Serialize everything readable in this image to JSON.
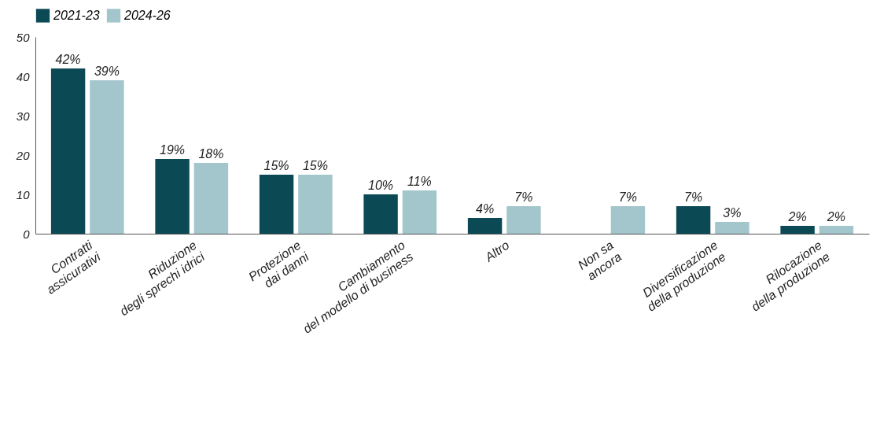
{
  "chart_data": {
    "type": "bar",
    "categories": [
      "Contratti\nassicurativi",
      "Riduzione\ndegli sprechi idrici",
      "Protezione\ndai danni",
      "Cambiamento\ndel modello di business",
      "Altro",
      "Non sa\nancora",
      "Diversificazione\ndella produzione",
      "Rilocazione\ndella produzione"
    ],
    "series": [
      {
        "name": "2021-23",
        "color": "#0b4a55",
        "values": [
          42,
          19,
          15,
          10,
          4,
          null,
          7,
          2
        ],
        "value_labels": [
          "42%",
          "19%",
          "15%",
          "10%",
          "4%",
          null,
          "7%",
          "2%"
        ]
      },
      {
        "name": "2024-26",
        "color": "#a3c6cc",
        "values": [
          39,
          18,
          15,
          11,
          7,
          7,
          3,
          2
        ],
        "value_labels": [
          "39%",
          "18%",
          "15%",
          "11%",
          "7%",
          "7%",
          "3%",
          "2%"
        ]
      }
    ],
    "ylim": [
      0,
      50
    ],
    "yticks": [
      0,
      10,
      20,
      30,
      40,
      50
    ],
    "grid": false,
    "legend": "top"
  }
}
